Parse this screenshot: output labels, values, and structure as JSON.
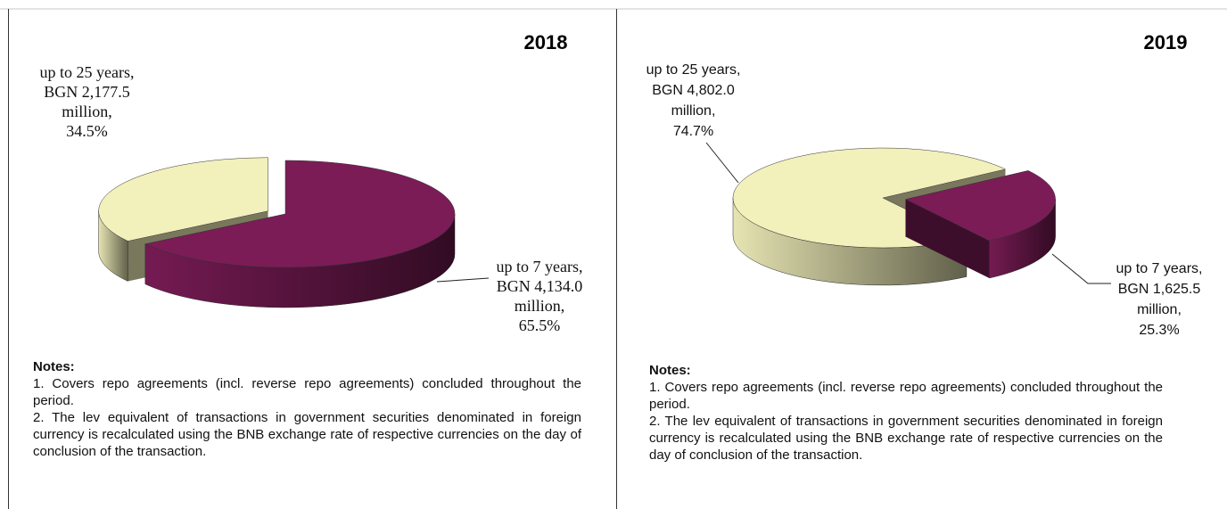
{
  "chart_data": [
    {
      "type": "pie",
      "title": "2018",
      "categories": [
        "up to 25 years,",
        "up to 7 years,"
      ],
      "values": [
        34.5,
        65.5
      ],
      "value_labels": [
        "34.5%",
        "65.5%"
      ],
      "amounts": [
        2177.5,
        4134.0
      ],
      "amount_labels": [
        "BGN 2,177.5 million,",
        "BGN 4,134.0 million,"
      ],
      "colors": [
        "#f2f0bb",
        "#7b1c57"
      ],
      "notes_title": "Notes:",
      "notes": [
        "1. Covers repo agreements (incl. reverse repo agreements) concluded throughout the period.",
        "2. The lev equivalent of transactions in government securities denominated in foreign currency is recalculated using the BNB exchange rate of respective currencies on the day of conclusion of the transaction."
      ]
    },
    {
      "type": "pie",
      "title": "2019",
      "categories": [
        "up to 25 years,",
        "up to 7 years,"
      ],
      "values": [
        74.7,
        25.3
      ],
      "value_labels": [
        "74.7%",
        "25.3%"
      ],
      "amounts": [
        4802.0,
        1625.5
      ],
      "amount_labels": [
        "BGN 4,802.0 million,",
        "BGN 1,625.5 million,"
      ],
      "colors": [
        "#f2f0bb",
        "#7b1c57"
      ],
      "notes_title": "Notes:",
      "notes": [
        "1. Covers repo agreements (incl. reverse repo agreements) concluded throughout the period.",
        "2. The lev equivalent of transactions in government securities denominated in foreign currency is recalculated using the BNB exchange rate of respective currencies on the day of conclusion of the transaction."
      ]
    }
  ]
}
